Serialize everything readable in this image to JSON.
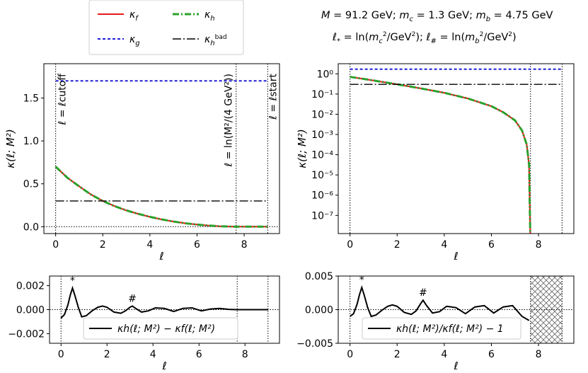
{
  "chart_data": [
    {
      "type": "line",
      "panel": "top-left",
      "ylabel": "κ(ℓ; M²)",
      "xlabel": "ℓ",
      "xlim": [
        -0.5,
        9.5
      ],
      "ylim": [
        -0.08,
        1.9
      ],
      "xticks": [
        "0",
        "2",
        "4",
        "6",
        "8"
      ],
      "yticks": [
        "0.0",
        "0.5",
        "1.0",
        "1.5"
      ],
      "vlines": [
        0,
        7.66,
        9
      ],
      "series": [
        {
          "name": "κf",
          "style": "solid",
          "color": "#e41a1c",
          "x": [
            0,
            0.5,
            1,
            1.5,
            2,
            2.5,
            3,
            3.5,
            4,
            4.5,
            5,
            5.5,
            6,
            6.5,
            7,
            7.4,
            7.66,
            8,
            8.5,
            9
          ],
          "y": [
            0.7,
            0.57,
            0.47,
            0.375,
            0.3,
            0.24,
            0.19,
            0.15,
            0.115,
            0.085,
            0.06,
            0.04,
            0.025,
            0.013,
            0.005,
            0.0015,
            0,
            0,
            0,
            0
          ]
        },
        {
          "name": "κg",
          "style": "dotted",
          "color": "#1f1fd6",
          "x": [
            0,
            9
          ],
          "y": [
            1.7,
            1.7
          ]
        },
        {
          "name": "κh",
          "style": "dashdot",
          "color": "#2ca02c",
          "x": [
            0,
            0.5,
            1,
            1.5,
            2,
            2.5,
            3,
            3.5,
            4,
            4.5,
            5,
            5.5,
            6,
            6.5,
            7,
            7.4,
            7.66,
            8,
            8.5,
            9
          ],
          "y": [
            0.7,
            0.57,
            0.47,
            0.375,
            0.3,
            0.24,
            0.19,
            0.15,
            0.115,
            0.085,
            0.06,
            0.04,
            0.025,
            0.013,
            0.005,
            0.0015,
            0,
            0,
            0,
            0
          ]
        },
        {
          "name": "κh^bad",
          "style": "dashed",
          "color": "#000000",
          "x": [
            0,
            9
          ],
          "y": [
            0.3,
            0.3
          ]
        }
      ],
      "annotations": [
        {
          "text": "ℓ = ℓcutoff",
          "x": 0
        },
        {
          "text": "ℓ = ln(M²/(4 GeV²))",
          "x": 7.66
        },
        {
          "text": "ℓ = ℓstart",
          "x": 9
        }
      ]
    },
    {
      "type": "line",
      "panel": "top-right",
      "scale": "log",
      "ylabel": "κ(ℓ; M²)",
      "xlabel": "ℓ",
      "xlim": [
        -0.5,
        9.5
      ],
      "ylim_log10": [
        -7.9,
        0.5
      ],
      "xticks": [
        "0",
        "2",
        "4",
        "6",
        "8"
      ],
      "yticks": [
        "10⁰",
        "10⁻¹",
        "10⁻²",
        "10⁻³",
        "10⁻⁴",
        "10⁻⁵",
        "10⁻⁶",
        "10⁻⁷"
      ],
      "vlines": [
        0,
        7.66,
        9
      ],
      "series": [
        {
          "name": "κf",
          "style": "solid",
          "color": "#e41a1c",
          "x": [
            0,
            1,
            2,
            3,
            4,
            5,
            6,
            6.5,
            7,
            7.3,
            7.5,
            7.6,
            7.65
          ],
          "log10y": [
            -0.15,
            -0.33,
            -0.52,
            -0.72,
            -0.94,
            -1.22,
            -1.6,
            -1.9,
            -2.3,
            -2.8,
            -3.5,
            -4.5,
            -7.9
          ]
        },
        {
          "name": "κg",
          "style": "dotted",
          "color": "#1f1fd6",
          "x": [
            0,
            9
          ],
          "log10y": [
            0.23,
            0.23
          ]
        },
        {
          "name": "κh",
          "style": "dashdot",
          "color": "#2ca02c",
          "x": [
            0,
            1,
            2,
            3,
            4,
            5,
            6,
            6.5,
            7,
            7.3,
            7.5,
            7.6,
            7.65
          ],
          "log10y": [
            -0.15,
            -0.33,
            -0.52,
            -0.72,
            -0.94,
            -1.22,
            -1.6,
            -1.9,
            -2.3,
            -2.8,
            -3.5,
            -4.5,
            -7.9
          ]
        },
        {
          "name": "κh^bad",
          "style": "dashed",
          "color": "#000000",
          "x": [
            0,
            9
          ],
          "log10y": [
            -0.52,
            -0.52
          ]
        }
      ]
    },
    {
      "type": "line",
      "panel": "bottom-left",
      "xlabel": "ℓ",
      "xlim": [
        -0.5,
        9.5
      ],
      "ylim": [
        -0.0028,
        0.0028
      ],
      "xticks": [
        "0",
        "2",
        "4",
        "6",
        "8"
      ],
      "yticks": [
        "0.002",
        "0.000",
        "−0.002"
      ],
      "vlines": [
        0,
        7.66,
        9
      ],
      "legend": "κh(ℓ; M²) − κf(ℓ; M²)",
      "series": [
        {
          "name": "κh − κf",
          "style": "solid",
          "color": "#000000",
          "x": [
            0,
            0.15,
            0.3,
            0.4,
            0.5,
            0.6,
            0.75,
            0.9,
            1.1,
            1.35,
            1.6,
            1.8,
            2.0,
            2.3,
            2.6,
            2.8,
            3.0,
            3.1,
            3.25,
            3.5,
            3.8,
            4.1,
            4.5,
            4.9,
            5.3,
            5.7,
            6.1,
            6.5,
            6.9,
            7.3,
            7.66,
            8.5,
            9
          ],
          "y": [
            -0.0007,
            -0.0004,
            0.0004,
            0.0012,
            0.0018,
            0.0012,
            0.0002,
            -0.0006,
            -0.0005,
            -0.0001,
            0.0002,
            0.0003,
            0.0002,
            -0.0002,
            -0.0003,
            -0.0001,
            0.0002,
            0.0003,
            0.0001,
            -0.0002,
            -0.0001,
            0.00015,
            0.0001,
            -0.00015,
            0.0001,
            0.00015,
            -0.0001,
            5e-05,
            0.0001,
            2e-05,
            0,
            0,
            0
          ]
        }
      ],
      "markers": [
        {
          "text": "*",
          "x": 0.5
        },
        {
          "text": "#",
          "x": 3.1
        }
      ]
    },
    {
      "type": "line",
      "panel": "bottom-right",
      "xlabel": "ℓ",
      "xlim": [
        -0.5,
        9.5
      ],
      "ylim": [
        -0.005,
        0.005
      ],
      "xticks": [
        "0",
        "2",
        "4",
        "6",
        "8"
      ],
      "yticks": [
        "0.005",
        "0.000",
        "−0.005"
      ],
      "vlines": [
        0,
        7.66,
        9
      ],
      "hatched_region": [
        7.66,
        9
      ],
      "legend": "κh(ℓ; M²)/κf(ℓ; M²) − 1",
      "series": [
        {
          "name": "κh/κf − 1",
          "style": "solid",
          "color": "#000000",
          "x": [
            0,
            0.15,
            0.3,
            0.4,
            0.5,
            0.6,
            0.75,
            0.9,
            1.1,
            1.35,
            1.6,
            1.8,
            2.0,
            2.3,
            2.6,
            2.8,
            3.0,
            3.1,
            3.25,
            3.5,
            3.8,
            4.1,
            4.5,
            4.9,
            5.3,
            5.7,
            6.1,
            6.5,
            6.9,
            7.3,
            7.6
          ],
          "y": [
            -0.001,
            -0.0006,
            0.0008,
            0.0022,
            0.0033,
            0.0022,
            0.0003,
            -0.001,
            -0.0008,
            -0.0001,
            0.0005,
            0.0007,
            0.0005,
            -0.0004,
            -0.0007,
            -0.0002,
            0.0009,
            0.0014,
            0.0006,
            -0.0005,
            -0.0003,
            0.0005,
            0.0003,
            -0.0006,
            0.0004,
            0.0006,
            -0.0005,
            0.0004,
            0.0006,
            -0.001,
            -0.0016
          ]
        }
      ],
      "markers": [
        {
          "text": "*",
          "x": 0.5
        },
        {
          "text": "#",
          "x": 3.1
        }
      ]
    }
  ],
  "legend": {
    "entries": [
      "κf",
      "κg",
      "κh",
      "κh^bad"
    ]
  },
  "header": {
    "line1": "M = 91.2 GeV;  mc = 1.3 GeV;  mb = 4.75 GeV",
    "line2": "ℓ* = ln(mc²/GeV²);    ℓ# = ln(mb²/GeV²)"
  },
  "colors": {
    "red": "#e41a1c",
    "blue": "#1f1fd6",
    "green": "#2ca02c",
    "black": "#000000"
  }
}
